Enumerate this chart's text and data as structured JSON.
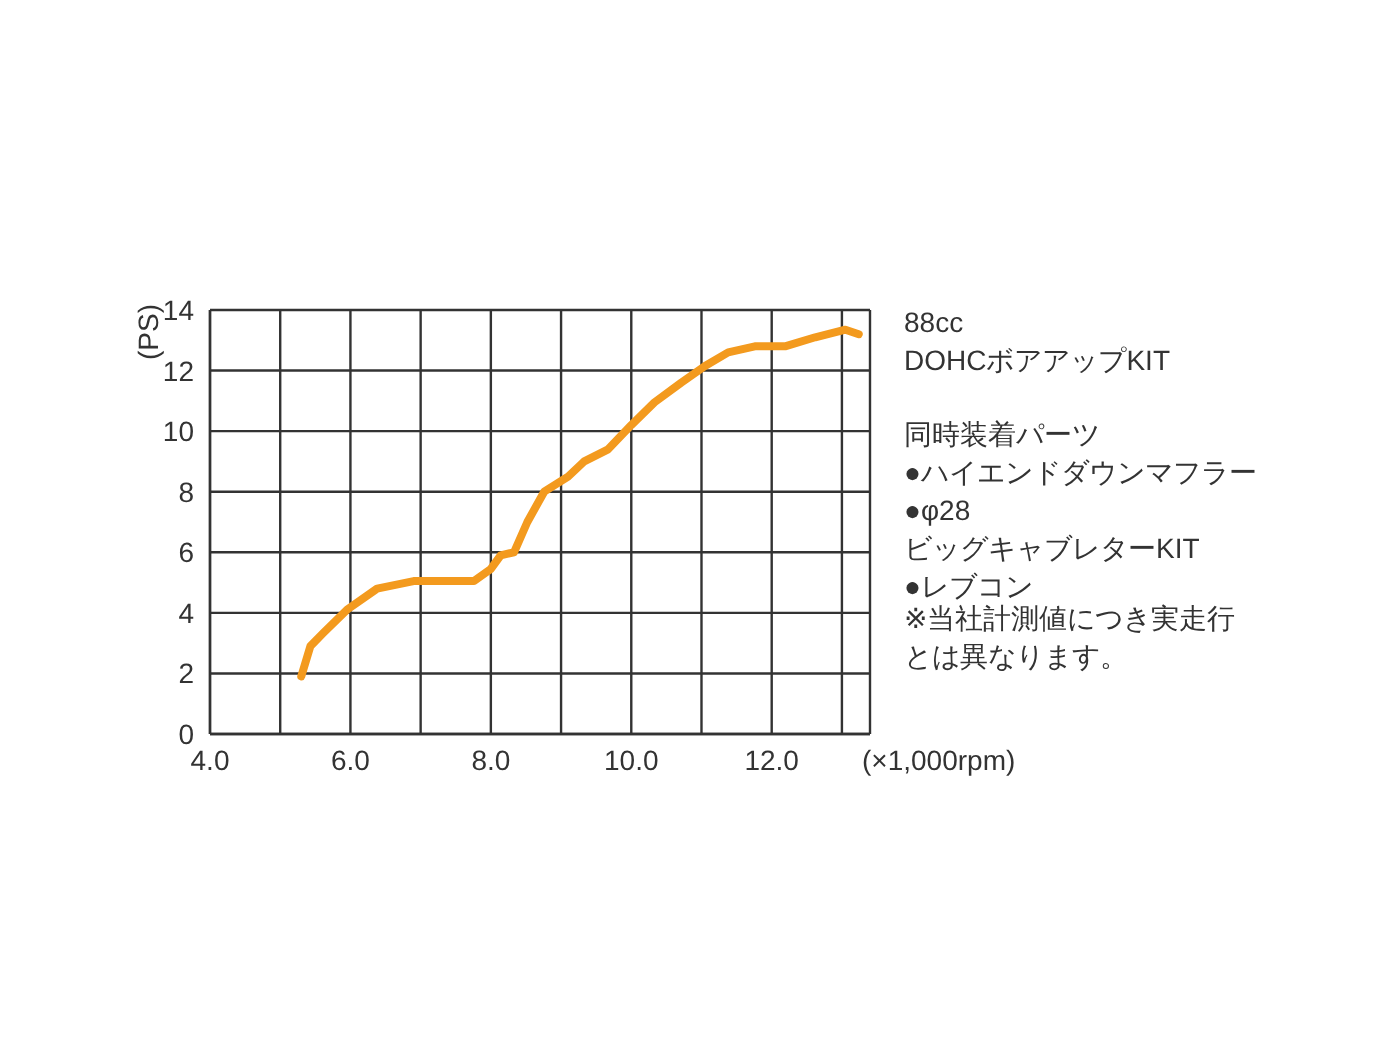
{
  "chart_data": {
    "type": "line",
    "title": "88cc\nDOHCボアアップKIT",
    "xlabel": "(×1,000rpm)",
    "ylabel": "(PS)",
    "annotations": [
      "同時装着パーツ\n●ハイエンドダウンマフラー\n●φ28\nビッグキャブレターKIT\n●レブコン",
      "※当社計測値につき実走行とは異なります。"
    ],
    "x": [
      5.3,
      5.43,
      5.62,
      5.95,
      6.38,
      6.9,
      7.76,
      8.0,
      8.14,
      8.33,
      8.52,
      8.76,
      9.1,
      9.33,
      9.67,
      10.0,
      10.33,
      10.71,
      11.05,
      11.38,
      11.76,
      12.19,
      12.62,
      13.05,
      13.24
    ],
    "series": [
      {
        "color": "#f39a1e",
        "values": [
          1.9,
          2.9,
          3.35,
          4.1,
          4.8,
          5.05,
          5.05,
          5.45,
          5.9,
          6.0,
          7.0,
          8.0,
          8.5,
          9.0,
          9.4,
          10.2,
          10.95,
          11.6,
          12.15,
          12.6,
          12.8,
          12.8,
          13.1,
          13.35,
          13.2
        ]
      }
    ],
    "xlim": [
      4,
      13.4
    ],
    "xticks": [
      {
        "value": 4,
        "label": "4.0"
      },
      {
        "value": 5,
        "label": null
      },
      {
        "value": 6,
        "label": "6.0"
      },
      {
        "value": 7,
        "label": null
      },
      {
        "value": 8,
        "label": "8.0"
      },
      {
        "value": 9,
        "label": null
      },
      {
        "value": 10,
        "label": "10.0"
      },
      {
        "value": 11,
        "label": null
      },
      {
        "value": 12,
        "label": "12.0"
      },
      {
        "value": 13,
        "label": null
      }
    ],
    "ylim": [
      0,
      14
    ],
    "yticks": [
      0,
      2,
      4,
      6,
      8,
      10,
      12,
      14
    ],
    "grid": true,
    "legend": false,
    "marker": "none",
    "line_style": "solid"
  }
}
